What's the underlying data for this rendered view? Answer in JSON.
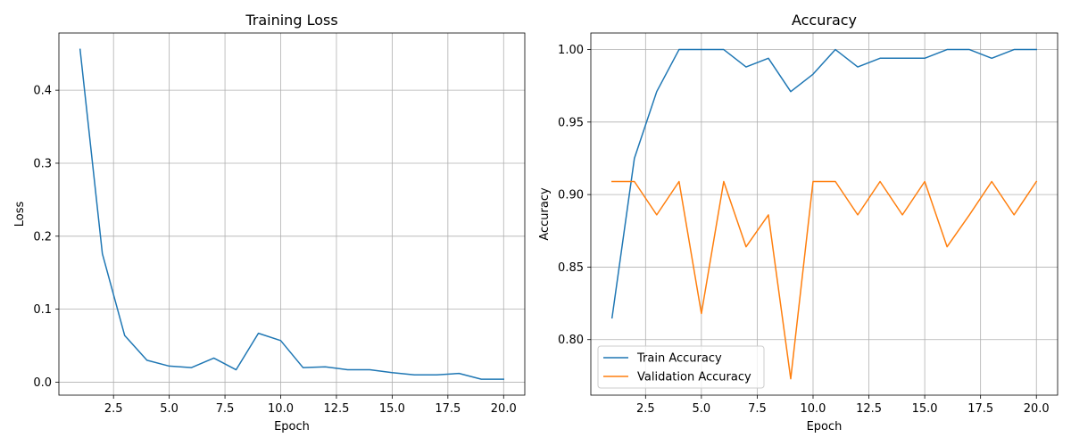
{
  "chart_data": [
    {
      "type": "line",
      "title": "Training Loss",
      "xlabel": "Epoch",
      "ylabel": "Loss",
      "xlim": [
        0.05,
        20.95
      ],
      "ylim": [
        -0.0178,
        0.4784
      ],
      "xticks": [
        2.5,
        5.0,
        7.5,
        10.0,
        12.5,
        15.0,
        17.5,
        20.0
      ],
      "xtick_labels": [
        "2.5",
        "5.0",
        "7.5",
        "10.0",
        "12.5",
        "15.0",
        "17.5",
        "20.0"
      ],
      "yticks": [
        0.0,
        0.1,
        0.2,
        0.3,
        0.4
      ],
      "ytick_labels": [
        "0.0",
        "0.1",
        "0.2",
        "0.3",
        "0.4"
      ],
      "grid": true,
      "legend": null,
      "series": [
        {
          "color": "#1f77b4",
          "x": [
            1,
            2,
            3,
            4,
            5,
            6,
            7,
            8,
            9,
            10,
            11,
            12,
            13,
            14,
            15,
            16,
            17,
            18,
            19,
            20
          ],
          "y": [
            0.456,
            0.176,
            0.064,
            0.03,
            0.022,
            0.02,
            0.033,
            0.017,
            0.067,
            0.057,
            0.02,
            0.021,
            0.017,
            0.017,
            0.013,
            0.01,
            0.01,
            0.012,
            0.004,
            0.004
          ]
        }
      ]
    },
    {
      "type": "line",
      "title": "Accuracy",
      "xlabel": "Epoch",
      "ylabel": "Accuracy",
      "xlim": [
        0.05,
        20.95
      ],
      "ylim": [
        0.7617,
        1.0114
      ],
      "xticks": [
        2.5,
        5.0,
        7.5,
        10.0,
        12.5,
        15.0,
        17.5,
        20.0
      ],
      "xtick_labels": [
        "2.5",
        "5.0",
        "7.5",
        "10.0",
        "12.5",
        "15.0",
        "17.5",
        "20.0"
      ],
      "yticks": [
        0.8,
        0.85,
        0.9,
        0.95,
        1.0
      ],
      "ytick_labels": [
        "0.80",
        "0.85",
        "0.90",
        "0.95",
        "1.00"
      ],
      "grid": true,
      "legend": "lower-left",
      "series": [
        {
          "name": "Train Accuracy",
          "color": "#1f77b4",
          "x": [
            1,
            2,
            3,
            4,
            5,
            6,
            7,
            8,
            9,
            10,
            11,
            12,
            13,
            14,
            15,
            16,
            17,
            18,
            19,
            20
          ],
          "y": [
            0.815,
            0.925,
            0.971,
            1.0,
            1.0,
            1.0,
            0.988,
            0.994,
            0.971,
            0.983,
            1.0,
            0.988,
            0.994,
            0.994,
            0.994,
            1.0,
            1.0,
            0.994,
            1.0,
            1.0
          ]
        },
        {
          "name": "Validation Accuracy",
          "color": "#ff7f0e",
          "x": [
            1,
            2,
            3,
            4,
            5,
            6,
            7,
            8,
            9,
            10,
            11,
            12,
            13,
            14,
            15,
            16,
            17,
            18,
            19,
            20
          ],
          "y": [
            0.909,
            0.909,
            0.886,
            0.909,
            0.818,
            0.909,
            0.864,
            0.886,
            0.773,
            0.909,
            0.909,
            0.886,
            0.909,
            0.886,
            0.909,
            0.864,
            0.886,
            0.909,
            0.886,
            0.909
          ]
        }
      ]
    }
  ]
}
